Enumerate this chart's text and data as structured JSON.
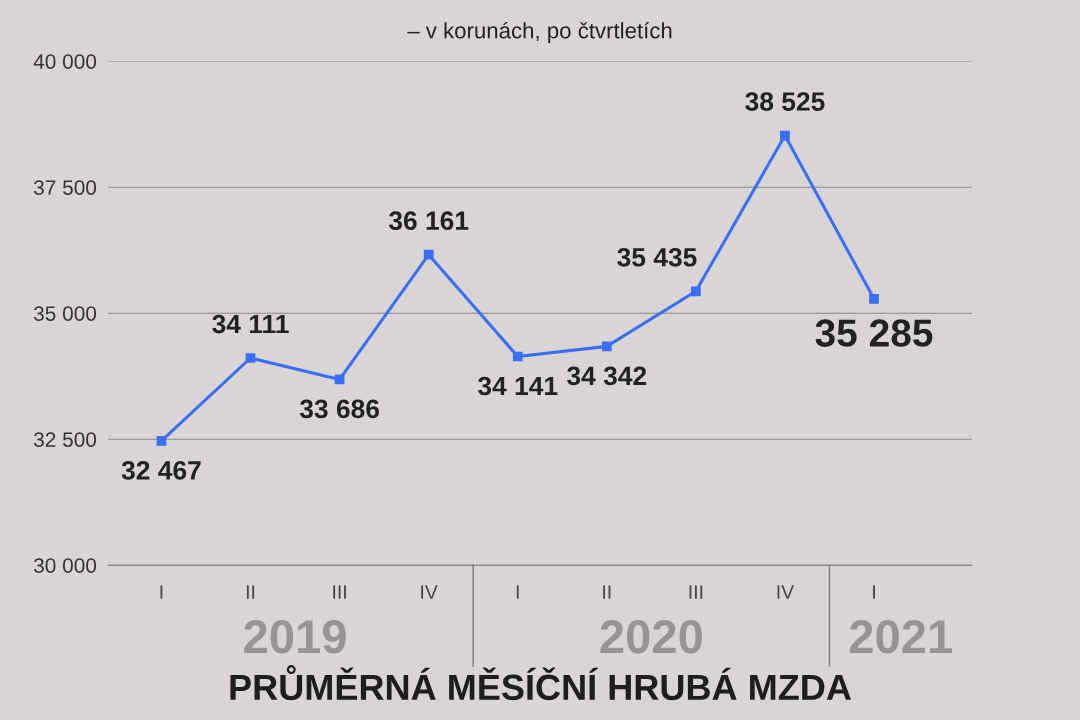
{
  "chart_data": {
    "type": "line",
    "title": "PRŮMĚRNÁ MĚSÍČNÍ HRUBÁ MZDA",
    "subtitle": "– v korunách, po čtvrtletích",
    "categories": [
      "I",
      "II",
      "III",
      "IV",
      "I",
      "II",
      "III",
      "IV",
      "I"
    ],
    "series": [
      {
        "color": "#3b6ef6",
        "values": [
          32467,
          34111,
          33686,
          36161,
          34141,
          34342,
          35435,
          38525,
          35285
        ],
        "value_labels": [
          "32 467",
          "34 111",
          "33 686",
          "36 161",
          "34 141",
          "34 342",
          "35 435",
          "38 525",
          "35 285"
        ]
      }
    ],
    "ylim": [
      30000,
      40000
    ],
    "yticks": [
      {
        "value": 30000,
        "label": "30 000"
      },
      {
        "value": 32500,
        "label": "32 500"
      },
      {
        "value": 35000,
        "label": "35 000"
      },
      {
        "value": 37500,
        "label": "37 500"
      },
      {
        "value": 40000,
        "label": "40 000"
      }
    ],
    "grid": "y",
    "marker": "square",
    "line_style": "solid",
    "legend": false,
    "annotations": [
      "2019",
      "2020",
      "2021"
    ]
  }
}
